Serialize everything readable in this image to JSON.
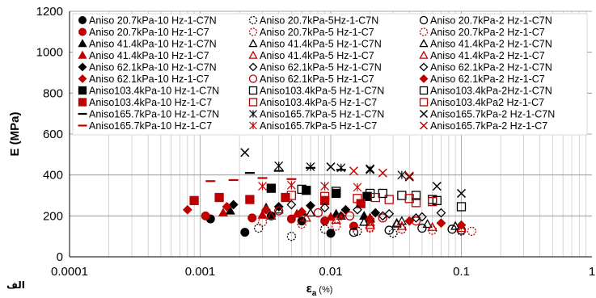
{
  "chart_data": {
    "type": "scatter",
    "xscale": "log",
    "xlim": [
      0.0001,
      1
    ],
    "ylim": [
      0,
      1200
    ],
    "xticks": [
      "0.0001",
      "0.001",
      "0.01",
      "0.1",
      "1"
    ],
    "yticks": [
      "0",
      "200",
      "400",
      "600",
      "800",
      "1000",
      "1200"
    ],
    "xlabel": "ε",
    "xlabel_sub": "a",
    "xlabel_unit": " (%)",
    "ylabel": "E (MPa)",
    "corner_label": "الف",
    "grid": true,
    "legend_position": "top",
    "series": [
      {
        "name": "Aniso 20.7kPa-10 Hz-1-C7N",
        "marker": "circle",
        "color": "#000000",
        "filled": true,
        "x": [
          0.0012,
          0.0022,
          0.0035,
          0.006,
          0.01
        ],
        "y": [
          185,
          120,
          200,
          175,
          115
        ]
      },
      {
        "name": "Aniso 20.7kPa-10 Hz-1-C7",
        "marker": "circle",
        "color": "#c00000",
        "filled": true,
        "x": [
          0.0011,
          0.0025,
          0.005,
          0.009,
          0.015
        ],
        "y": [
          200,
          190,
          185,
          175,
          150
        ]
      },
      {
        "name": "Aniso 41.4kPa-10 Hz-1-C7N",
        "marker": "triangle",
        "color": "#000000",
        "filled": true,
        "x": [
          0.0017,
          0.0032,
          0.006,
          0.011,
          0.018
        ],
        "y": [
          225,
          240,
          220,
          210,
          200
        ]
      },
      {
        "name": "Aniso 41.4kPa-10 Hz-1-C7",
        "marker": "triangle",
        "color": "#c00000",
        "filled": true,
        "x": [
          0.0015,
          0.003,
          0.0055,
          0.01,
          0.02
        ],
        "y": [
          215,
          205,
          210,
          195,
          185
        ]
      },
      {
        "name": "Aniso 62.1kPa-10 Hz-1-C7N",
        "marker": "diamond",
        "color": "#000000",
        "filled": true,
        "x": [
          0.0018,
          0.004,
          0.007,
          0.013,
          0.022
        ],
        "y": [
          255,
          245,
          250,
          230,
          215
        ]
      },
      {
        "name": "Aniso 62.1kPa-10 Hz-1-C7",
        "marker": "diamond",
        "color": "#c00000",
        "filled": true,
        "x": [
          0.0008,
          0.0016,
          0.0032,
          0.006,
          0.012
        ],
        "y": [
          230,
          245,
          230,
          220,
          200
        ]
      },
      {
        "name": "Aniso103.4kPa-10 Hz-1-C7N",
        "marker": "square",
        "color": "#000000",
        "filled": true,
        "x": [
          0.0035,
          0.0065,
          0.011,
          0.019
        ],
        "y": [
          335,
          325,
          310,
          295
        ]
      },
      {
        "name": "Aniso103.4kPa-10 Hz-1-C7",
        "marker": "square",
        "color": "#c00000",
        "filled": true,
        "x": [
          0.0009,
          0.0014,
          0.0024,
          0.0045,
          0.009,
          0.017
        ],
        "y": [
          275,
          290,
          280,
          290,
          275,
          260
        ]
      },
      {
        "name": "Aniso165.7kPa-10 Hz-1-C7N",
        "marker": "dash",
        "color": "#000000",
        "filled": true,
        "x": [
          0.0024,
          0.004,
          0.007,
          0.012
        ],
        "y": [
          410,
          420,
          435,
          425
        ]
      },
      {
        "name": "Aniso165.7kPa-10 Hz-1-C7",
        "marker": "dash",
        "color": "#c00000",
        "filled": true,
        "x": [
          0.0012,
          0.0018,
          0.003,
          0.005
        ],
        "y": [
          370,
          375,
          385,
          380
        ]
      },
      {
        "name": "Aniso 20.7kPa-5Hz-1-C7N",
        "marker": "circle-dashed",
        "color": "#000000",
        "filled": false,
        "x": [
          0.0028,
          0.005,
          0.009,
          0.016,
          0.03
        ],
        "y": [
          140,
          100,
          135,
          125,
          115
        ]
      },
      {
        "name": "Aniso 20.7kPa-5 Hz-1-C7",
        "marker": "circle-dashed",
        "color": "#c00000",
        "filled": false,
        "x": [
          0.003,
          0.006,
          0.011,
          0.02,
          0.035
        ],
        "y": [
          170,
          160,
          150,
          145,
          135
        ]
      },
      {
        "name": "Aniso 41.4kPa-5 Hz-1-C7N",
        "marker": "triangle-open",
        "color": "#000000",
        "filled": false,
        "x": [
          0.004,
          0.007,
          0.012,
          0.02,
          0.035
        ],
        "y": [
          230,
          215,
          200,
          190,
          175
        ]
      },
      {
        "name": "Aniso 41.4kPa-5 Hz-1-C7",
        "marker": "triangle-open",
        "color": "#c00000",
        "filled": false,
        "x": [
          0.0035,
          0.0065,
          0.011,
          0.02,
          0.032
        ],
        "y": [
          200,
          190,
          180,
          170,
          160
        ]
      },
      {
        "name": "Aniso 62.1kPa-5 Hz-1-C7N",
        "marker": "diamond-open",
        "color": "#000000",
        "filled": false,
        "x": [
          0.005,
          0.009,
          0.016,
          0.028,
          0.05
        ],
        "y": [
          255,
          240,
          230,
          210,
          195
        ]
      },
      {
        "name": "Aniso 62.1kPa-5 Hz-1-C7",
        "marker": "circle-open",
        "color": "#c00000",
        "filled": false,
        "x": [
          0.004,
          0.008,
          0.014,
          0.025,
          0.045
        ],
        "y": [
          225,
          215,
          200,
          190,
          175
        ]
      },
      {
        "name": "Aniso103.4kPa-5 Hz-1-C7N",
        "marker": "square-open",
        "color": "#000000",
        "filled": false,
        "x": [
          0.006,
          0.011,
          0.02,
          0.035,
          0.06
        ],
        "y": [
          330,
          320,
          310,
          300,
          280
        ]
      },
      {
        "name": "Aniso103.4kPa-5 Hz-1-C7",
        "marker": "square-open",
        "color": "#c00000",
        "filled": false,
        "x": [
          0.005,
          0.009,
          0.016,
          0.028,
          0.045
        ],
        "y": [
          300,
          295,
          285,
          280,
          265
        ]
      },
      {
        "name": "Aniso165.7kPa-5 Hz-1-C7N",
        "marker": "star",
        "color": "#000000",
        "filled": false,
        "x": [
          0.004,
          0.007,
          0.012,
          0.02,
          0.035
        ],
        "y": [
          445,
          440,
          435,
          425,
          400
        ]
      },
      {
        "name": "Aniso165.7kPa-5 Hz-1-C7",
        "marker": "star",
        "color": "#c00000",
        "filled": false,
        "x": [
          0.003,
          0.005,
          0.009,
          0.016
        ],
        "y": [
          345,
          350,
          345,
          340
        ]
      },
      {
        "name": "Aniso 20.7kPa-2 Hz-1-C7N",
        "marker": "circle-open",
        "color": "#000000",
        "filled": false,
        "x": [
          0.015,
          0.028,
          0.05,
          0.085,
          0.1
        ],
        "y": [
          120,
          130,
          140,
          135,
          130
        ]
      },
      {
        "name": "Aniso 20.7kPa-2 Hz-1-C7",
        "marker": "circle-dashed",
        "color": "#c00000",
        "filled": false,
        "x": [
          0.02,
          0.035,
          0.06,
          0.1,
          0.12
        ],
        "y": [
          140,
          135,
          130,
          125,
          125
        ]
      },
      {
        "name": "Aniso 41.4kPa-2 Hz-1-C7N",
        "marker": "triangle-open",
        "color": "#000000",
        "filled": false,
        "x": [
          0.018,
          0.032,
          0.055,
          0.09
        ],
        "y": [
          170,
          165,
          160,
          150
        ]
      },
      {
        "name": "Aniso 41.4kPa-2 Hz-1-C7",
        "marker": "triangle-open",
        "color": "#c00000",
        "filled": false,
        "x": [
          0.02,
          0.035,
          0.06,
          0.1
        ],
        "y": [
          155,
          150,
          145,
          140
        ]
      },
      {
        "name": "Aniso 62.1kPa-2 Hz-1-C7N",
        "marker": "diamond-open",
        "color": "#000000",
        "filled": false,
        "x": [
          0.025,
          0.045,
          0.07
        ],
        "y": [
          200,
          190,
          215
        ]
      },
      {
        "name": "Aniso 62.1kPa-2 Hz-1-C7",
        "marker": "diamond",
        "color": "#c00000",
        "filled": true,
        "x": [
          0.02,
          0.04,
          0.07,
          0.1
        ],
        "y": [
          185,
          175,
          165,
          155
        ]
      },
      {
        "name": "Aniso103.4kPa-2Hz-1-C7N",
        "marker": "square-open",
        "color": "#000000",
        "filled": false,
        "x": [
          0.025,
          0.045,
          0.065,
          0.1
        ],
        "y": [
          310,
          300,
          275,
          245
        ]
      },
      {
        "name": "Aniso103.4kPa2 Hz-1-C7",
        "marker": "square-open",
        "color": "#c00000",
        "filled": false,
        "x": [
          0.022,
          0.04,
          0.06
        ],
        "y": [
          290,
          285,
          270
        ]
      },
      {
        "name": "Aniso165.7kPa-2 Hz-1-C7N",
        "marker": "x",
        "color": "#000000",
        "filled": false,
        "x": [
          0.0022,
          0.01,
          0.02,
          0.04,
          0.065,
          0.1
        ],
        "y": [
          510,
          440,
          430,
          390,
          345,
          310
        ]
      },
      {
        "name": "Aniso165.7kPa-2 Hz-1-C7",
        "marker": "x",
        "color": "#c00000",
        "filled": false,
        "x": [
          0.015,
          0.025,
          0.04
        ],
        "y": [
          420,
          410,
          395
        ]
      }
    ]
  }
}
